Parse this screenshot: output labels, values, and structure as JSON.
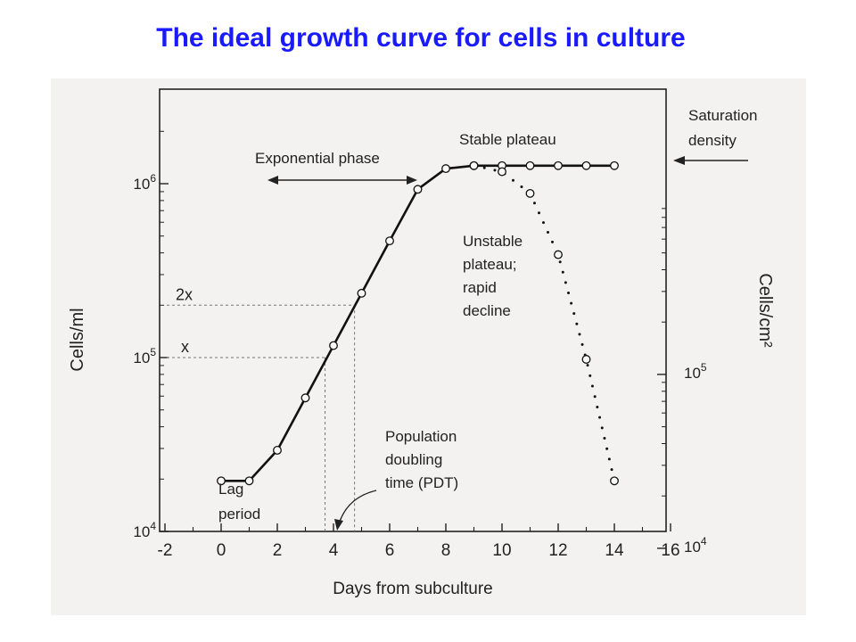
{
  "title": "The ideal growth curve for cells in culture",
  "chart_data": {
    "type": "scatter",
    "log_scale_y": true,
    "grid": false,
    "xlabel": "Days from subculture",
    "ylabel": "Cells/ml",
    "y2label": "Cells/cm²",
    "xlim": [
      -2,
      16
    ],
    "ylim": [
      10000,
      2000000
    ],
    "x_ticks": [
      -2,
      0,
      2,
      4,
      6,
      8,
      10,
      12,
      14,
      16
    ],
    "y_ticks": [
      {
        "value": 10000,
        "base": "10",
        "exp": "4"
      },
      {
        "value": 100000,
        "base": "10",
        "exp": "5"
      },
      {
        "value": 1000000,
        "base": "10",
        "exp": "6"
      }
    ],
    "y2_ticks": [
      {
        "value": 8000,
        "base": "10",
        "exp": "4"
      },
      {
        "value": 80000,
        "base": "10",
        "exp": "5"
      }
    ],
    "series": [
      {
        "style": "solid",
        "x": [
          0,
          1,
          2,
          3,
          4,
          5,
          6,
          7,
          8,
          9,
          10,
          11,
          12,
          13,
          14
        ],
        "y": [
          20000,
          20000,
          30000,
          60000,
          120000,
          240000,
          480000,
          950000,
          1250000,
          1300000,
          1300000,
          1300000,
          1300000,
          1300000,
          1300000
        ]
      },
      {
        "style": "dotted",
        "x": [
          9,
          10,
          11,
          12,
          13,
          14
        ],
        "y": [
          1300000,
          1200000,
          900000,
          400000,
          100000,
          20000
        ]
      }
    ],
    "doubling": {
      "x_label": "x",
      "x_value": 100000,
      "x_day": 3.7,
      "two_x_label": "2x",
      "two_x_value": 200000,
      "two_x_day": 4.75
    },
    "annotations": {
      "exponential": "Exponential phase",
      "stable": "Stable plateau",
      "saturation": [
        "Saturation",
        "density"
      ],
      "unstable": [
        "Unstable",
        "plateau;",
        "rapid",
        "decline"
      ],
      "pdt": [
        "Population",
        "doubling",
        "time (PDT)"
      ],
      "lag": [
        "Lag",
        "period"
      ]
    }
  }
}
